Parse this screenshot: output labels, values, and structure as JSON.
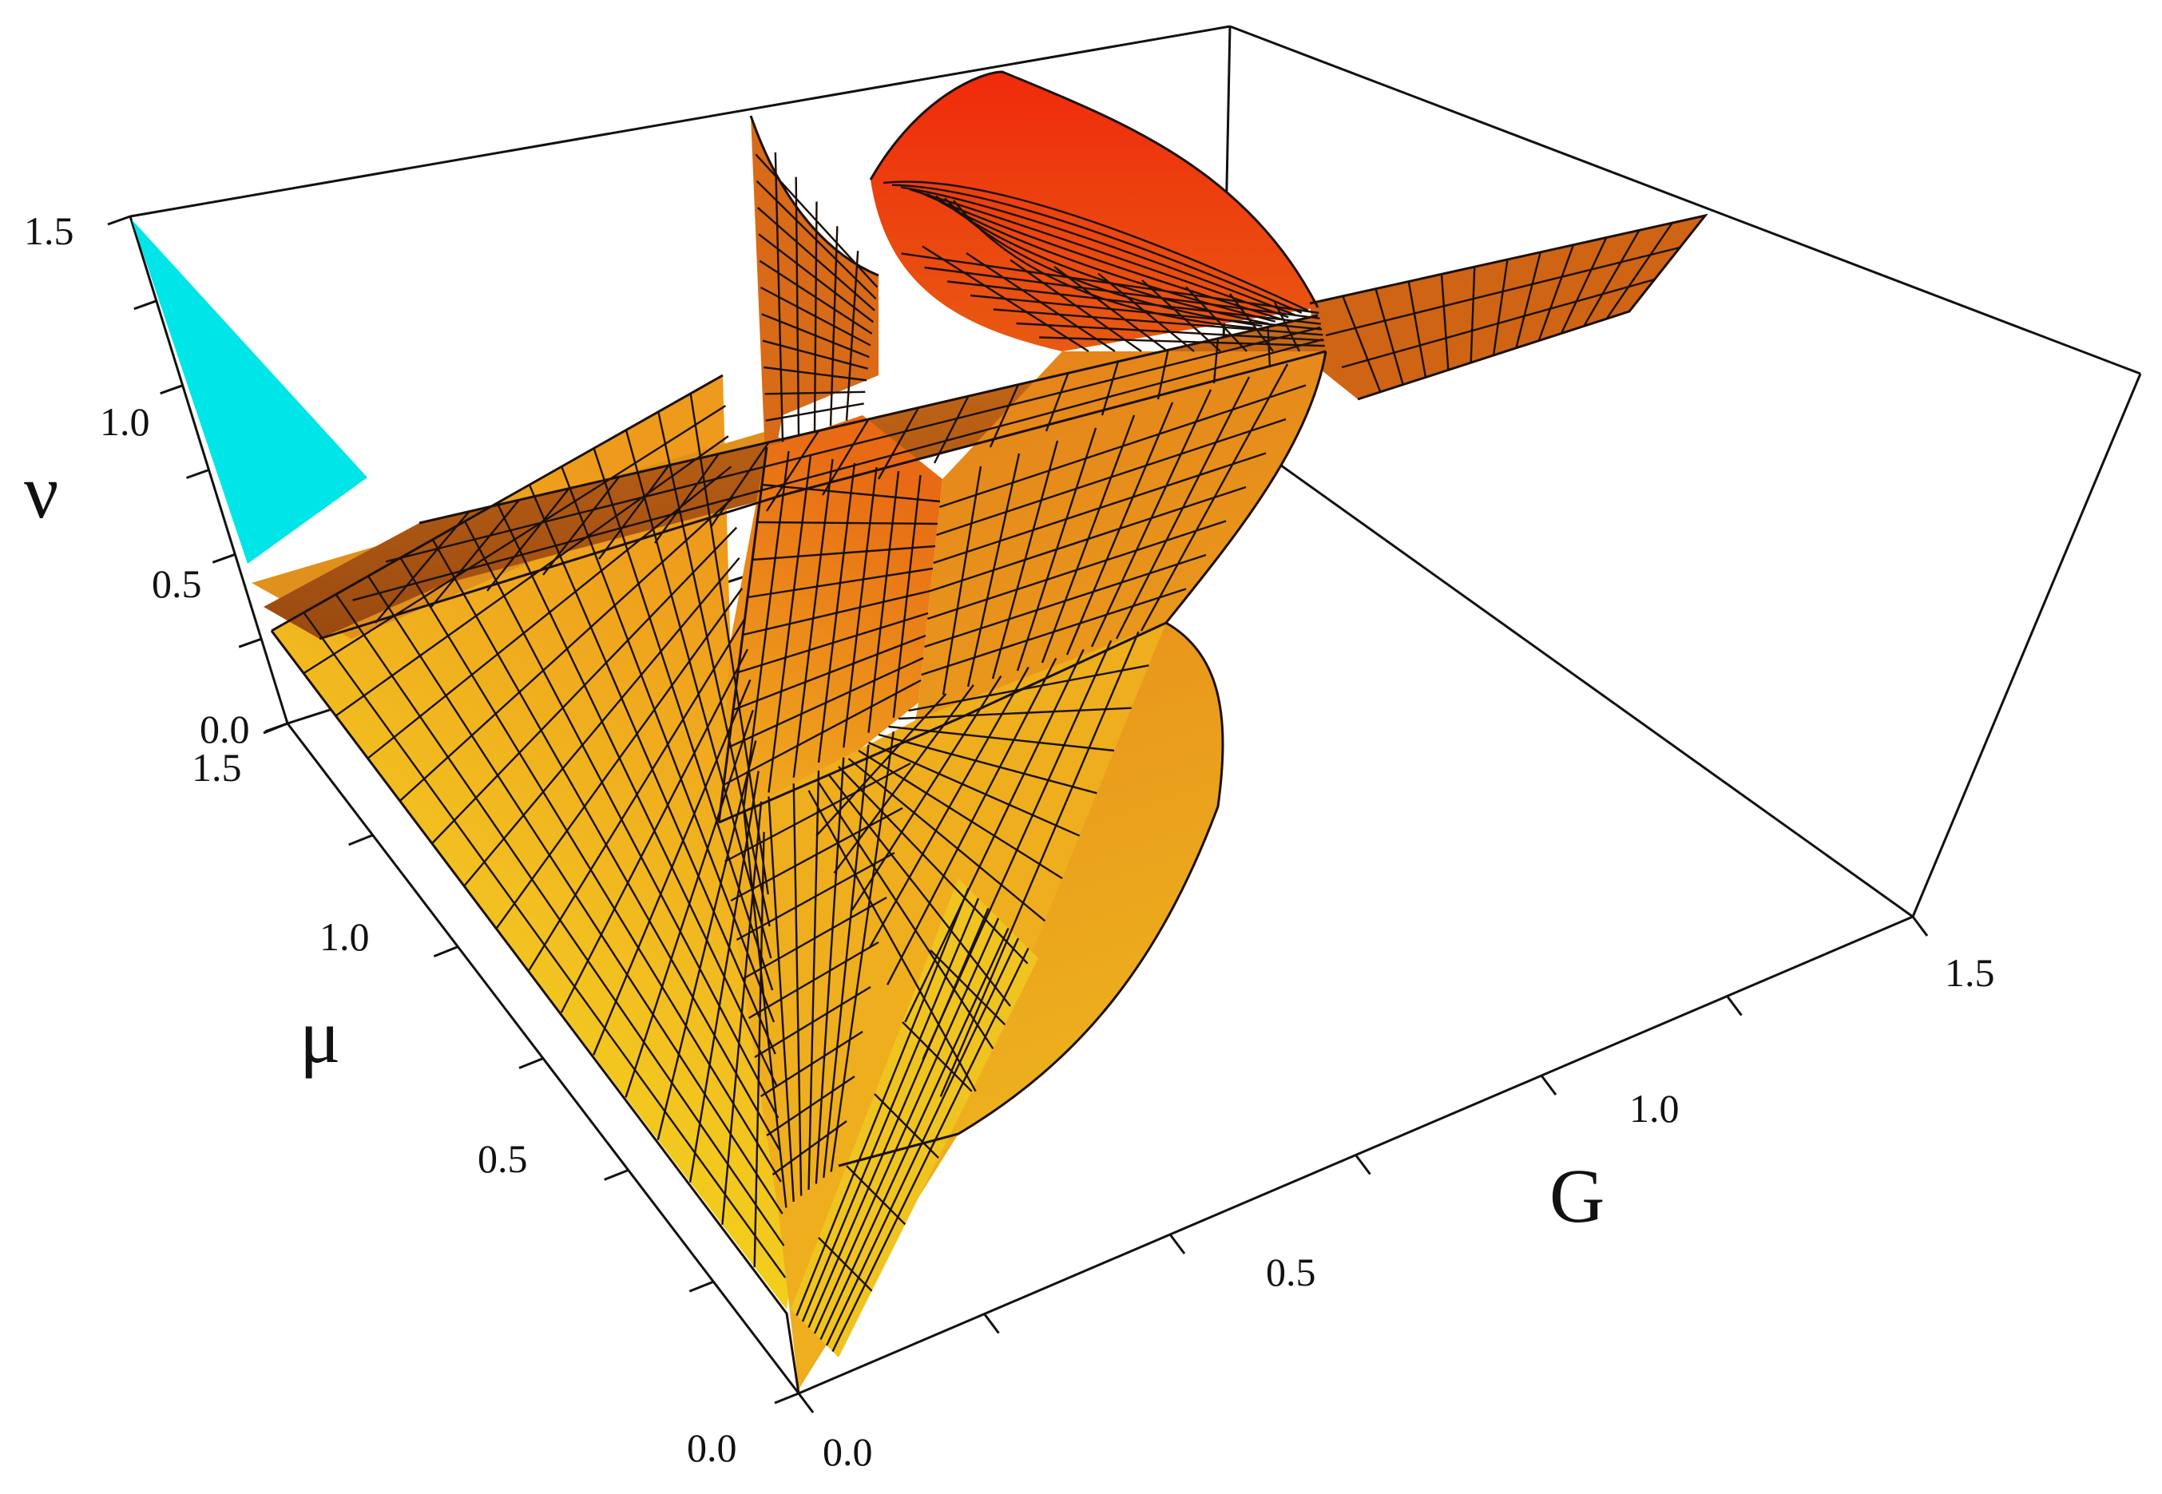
{
  "chart_data": {
    "type": "surface3d",
    "title": "",
    "axes": {
      "x": {
        "label": "G",
        "range": [
          0.0,
          1.5
        ],
        "ticks": [
          "0.0",
          "0.5",
          "1.0",
          "1.5"
        ]
      },
      "y": {
        "label": "μ",
        "range": [
          0.0,
          1.5
        ],
        "ticks": [
          "0.0",
          "0.5",
          "1.0",
          "1.5"
        ]
      },
      "z": {
        "label": "ν",
        "range": [
          0.0,
          1.5
        ],
        "ticks": [
          "0.0",
          "0.5",
          "1.0",
          "1.5"
        ]
      }
    },
    "surface_colors": {
      "low": "#f2e010",
      "mid": "#f0a020",
      "high": "#f03010",
      "cap": "#00e5e8"
    },
    "grid": false,
    "legend": "none"
  }
}
